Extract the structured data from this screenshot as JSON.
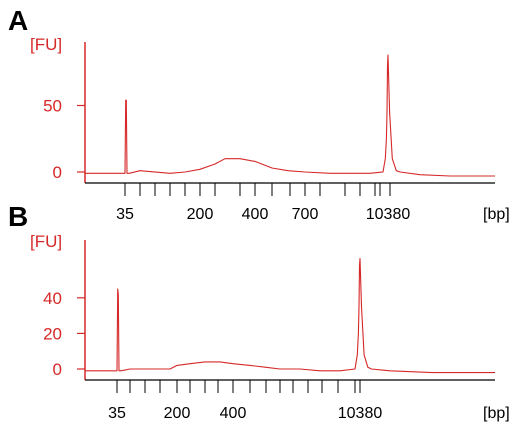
{
  "colors": {
    "accent": "#d62828",
    "axis": "#000000",
    "text": "#000000"
  },
  "chart_data": [
    {
      "type": "line",
      "panel_label": "A",
      "y_unit": "[FU]",
      "x_unit": "[bp]",
      "y_ticks": [
        0,
        50
      ],
      "ylim": [
        -5,
        100
      ],
      "x_tick_labels": [
        "35",
        "200",
        "400",
        "700",
        "10380"
      ],
      "series": [
        {
          "x": [
            35,
            36,
            37,
            38,
            40,
            50,
            100,
            150,
            200,
            250,
            300,
            350,
            400,
            500,
            600,
            700,
            1000,
            2000,
            5000,
            9500,
            9900,
            10100,
            10200,
            10300,
            10380,
            10460,
            10600,
            10800,
            11000,
            12000,
            14000,
            17000
          ],
          "y": [
            -1,
            54,
            54,
            -1,
            -1,
            1,
            -1,
            0,
            2,
            6,
            10,
            10,
            8,
            3,
            1,
            0,
            -1,
            -1,
            -1,
            0,
            10,
            25,
            45,
            80,
            88,
            45,
            10,
            1,
            0,
            -2,
            -3,
            -3
          ]
        }
      ]
    },
    {
      "type": "line",
      "panel_label": "B",
      "y_unit": "[FU]",
      "x_unit": "[bp]",
      "y_ticks": [
        0,
        20,
        40
      ],
      "ylim": [
        -3,
        65
      ],
      "x_tick_labels": [
        "35",
        "200",
        "400",
        "10380"
      ],
      "series": [
        {
          "x": [
            35,
            36,
            37,
            38,
            40,
            50,
            100,
            150,
            200,
            250,
            300,
            350,
            400,
            500,
            600,
            700,
            1000,
            2000,
            5000,
            9500,
            9900,
            10100,
            10200,
            10300,
            10380,
            10460,
            10600,
            10800,
            11000,
            12000,
            14000,
            17000
          ],
          "y": [
            -1,
            45,
            42,
            -1,
            -1,
            0,
            0,
            0,
            2,
            3,
            4,
            4,
            3,
            2,
            1,
            0,
            0,
            -1,
            -1,
            0,
            8,
            20,
            35,
            58,
            62,
            35,
            8,
            1,
            0,
            -1,
            -2,
            -2
          ]
        }
      ]
    }
  ]
}
